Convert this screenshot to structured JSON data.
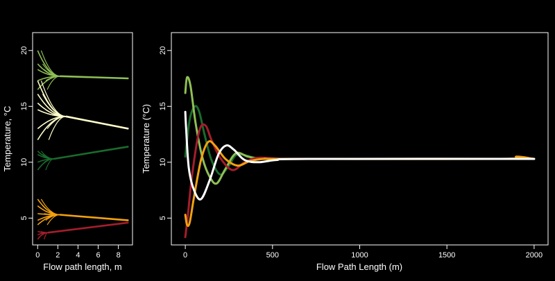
{
  "colors": {
    "background": "#000000",
    "axis": "#ffffff",
    "light_green": "#8fbf56",
    "cream": "#ffffcc",
    "dark_green": "#1a6b2c",
    "orange": "#f2a111",
    "red": "#a51d2d",
    "white": "#ffffff"
  },
  "chart_data": [
    {
      "type": "line",
      "title": "",
      "xlabel": "Flow path length, m",
      "ylabel": "Temperature, °C",
      "xlim": [
        -0.5,
        9.4
      ],
      "ylim": [
        2.6,
        21.6
      ],
      "xticks": [
        0,
        2,
        4,
        6,
        8
      ],
      "xtick_labels": [
        "0",
        "2",
        "4",
        "6",
        "8"
      ],
      "yticks": [
        5,
        10,
        15,
        20
      ],
      "ytick_labels": [
        "5",
        "10",
        "15",
        "20"
      ],
      "grid": false,
      "legend": "none",
      "groups": [
        {
          "color": "light_green",
          "start_values": [
            20.0,
            18.8,
            18.3,
            17.3,
            16.5
          ],
          "converge_x": 2.2,
          "end_x": 9.0,
          "end_value": 17.5,
          "mid_value": 17.7
        },
        {
          "color": "cream",
          "start_values": [
            17.3,
            16.1,
            15.3,
            14.7,
            13.0,
            12.0
          ],
          "converge_x": 2.8,
          "end_x": 9.0,
          "end_value": 13.0,
          "mid_value": 14.1
        },
        {
          "color": "dark_green",
          "start_values": [
            11.0,
            10.7,
            10.0,
            9.3
          ],
          "converge_x": 1.6,
          "end_x": 9.0,
          "end_value": 11.4,
          "mid_value": 10.3
        },
        {
          "color": "orange",
          "start_values": [
            6.7,
            6.1,
            5.4,
            4.8,
            4.4
          ],
          "converge_x": 2.2,
          "end_x": 9.0,
          "end_value": 4.8,
          "mid_value": 5.3
        },
        {
          "color": "red",
          "start_values": [
            3.8,
            3.5,
            3.1
          ],
          "converge_x": 1.0,
          "end_x": 9.0,
          "end_value": 4.6,
          "mid_value": 3.7
        }
      ]
    },
    {
      "type": "line",
      "title": "",
      "xlabel": "Flow Path Length (m)",
      "ylabel": "Temperature (°C)",
      "xlim": [
        -80,
        2080
      ],
      "ylim": [
        2.6,
        21.6
      ],
      "xticks": [
        0,
        500,
        1000,
        1500,
        2000
      ],
      "xtick_labels": [
        "0",
        "500",
        "1000",
        "1500",
        "2000"
      ],
      "yticks": [
        5,
        10,
        15,
        20
      ],
      "ytick_labels": [
        "5",
        "10",
        "15",
        "20"
      ],
      "grid": false,
      "legend": "none",
      "equilibrium": 10.3,
      "series": [
        {
          "color": "dark_green",
          "x": [
            0,
            25,
            55,
            80,
            110,
            150,
            200,
            250,
            300,
            400,
            500,
            700,
            2000
          ],
          "y": [
            10.5,
            13.8,
            15.0,
            14.5,
            12.5,
            10.2,
            8.9,
            9.7,
            10.7,
            10.4,
            10.3,
            10.3,
            10.3
          ]
        },
        {
          "color": "light_green",
          "x": [
            0,
            10,
            30,
            60,
            100,
            140,
            180,
            230,
            290,
            360,
            450,
            700,
            2000
          ],
          "y": [
            16.2,
            17.6,
            16.8,
            13.4,
            10.3,
            8.7,
            8.1,
            9.4,
            10.8,
            10.5,
            10.3,
            10.3,
            10.3
          ]
        },
        {
          "color": "red",
          "x": [
            0,
            15,
            40,
            80,
            115,
            150,
            200,
            270,
            340,
            420,
            550,
            800,
            2000
          ],
          "y": [
            3.3,
            5.3,
            9.0,
            12.8,
            13.3,
            12.0,
            10.4,
            9.3,
            10.0,
            10.4,
            10.3,
            10.3,
            10.3
          ]
        },
        {
          "color": "orange",
          "x": [
            0,
            10,
            25,
            50,
            90,
            130,
            170,
            230,
            300,
            370,
            450,
            600,
            1800,
            1900,
            2000
          ],
          "y": [
            5.3,
            4.4,
            4.6,
            6.9,
            10.2,
            11.8,
            11.5,
            10.3,
            9.7,
            10.1,
            10.3,
            10.3,
            10.3,
            10.5,
            10.3
          ]
        },
        {
          "color": "white",
          "x": [
            0,
            4,
            20,
            50,
            90,
            140,
            190,
            235,
            280,
            340,
            420,
            520,
            700,
            2000
          ],
          "y": [
            14.5,
            13.2,
            9.5,
            7.5,
            6.7,
            8.4,
            10.7,
            11.5,
            11.1,
            10.2,
            10.0,
            10.2,
            10.3,
            10.3
          ]
        }
      ]
    }
  ]
}
